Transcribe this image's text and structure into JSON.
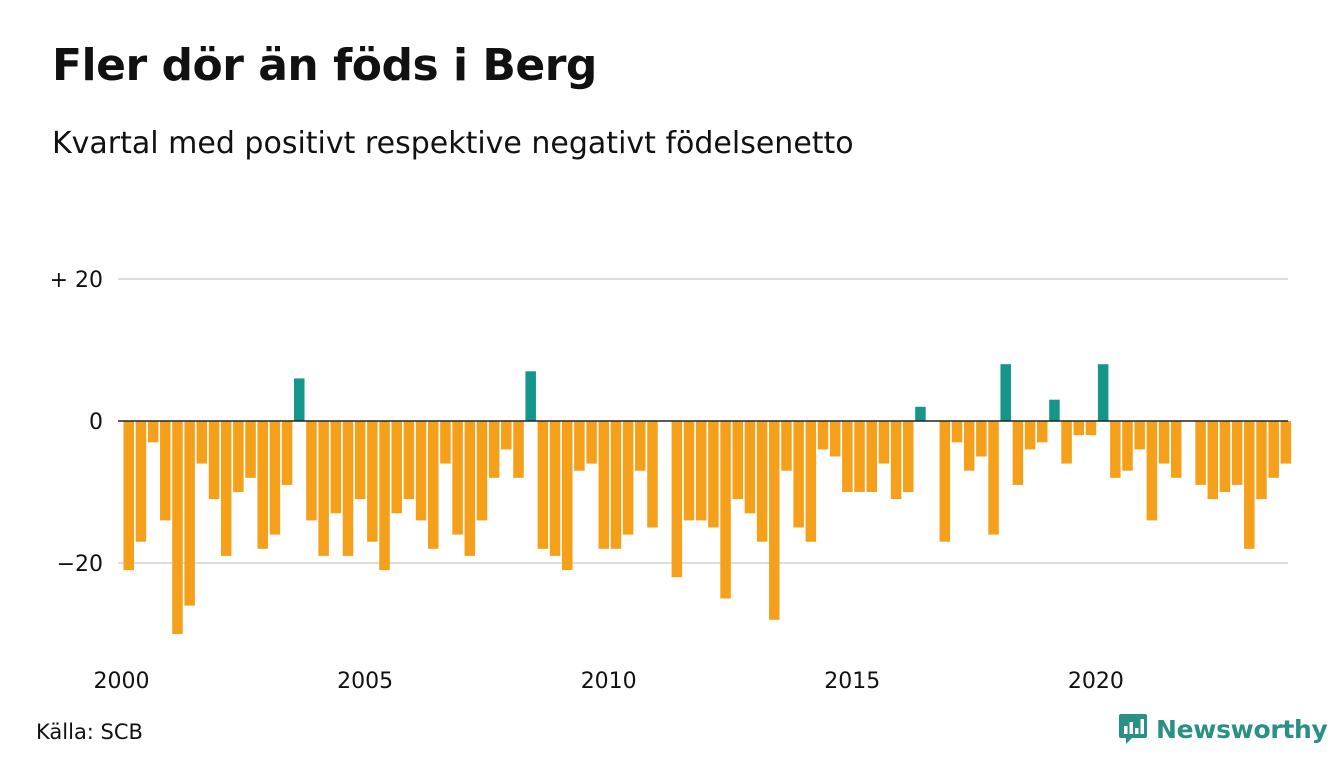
{
  "header": {
    "title": "Fler dör än föds i Berg",
    "subtitle": "Kvartal med positivt respektive negativt födelsenetto"
  },
  "footer": {
    "source": "Källa: SCB",
    "brand": "Newsworthy",
    "brand_icon": "newsworthy-logo-icon"
  },
  "colors": {
    "positive": "#14968a",
    "negative": "#f5a01a",
    "grid": "#dddddd",
    "zero_line": "#222222",
    "brand": "#2a8f84"
  },
  "chart_data": {
    "type": "bar",
    "title": "Fler dör än föds i Berg",
    "subtitle": "Kvartal med positivt respektive negativt födelsenetto",
    "xlabel": "",
    "ylabel": "",
    "x_start": "2000 Q1",
    "ylim": [
      -32,
      22
    ],
    "y_ticks": [
      {
        "value": 20,
        "label": "+ 20"
      },
      {
        "value": 0,
        "label": "0"
      },
      {
        "value": -20,
        "label": "−20"
      }
    ],
    "x_ticks": [
      {
        "year": 2000,
        "label": "2000"
      },
      {
        "year": 2005,
        "label": "2005"
      },
      {
        "year": 2010,
        "label": "2010"
      },
      {
        "year": 2015,
        "label": "2015"
      },
      {
        "year": 2020,
        "label": "2020"
      }
    ],
    "grid": true,
    "legend": "none",
    "values": [
      -21,
      -17,
      -3,
      -14,
      -30,
      -26,
      -6,
      -11,
      -19,
      -10,
      -8,
      -18,
      -16,
      -9,
      6,
      -14,
      -19,
      -13,
      -19,
      -11,
      -17,
      -21,
      -13,
      -11,
      -14,
      -18,
      -6,
      -16,
      -19,
      -14,
      -8,
      -4,
      -8,
      7,
      -18,
      -19,
      -21,
      -7,
      -6,
      -18,
      -18,
      -16,
      -7,
      -15,
      0,
      -22,
      -14,
      -14,
      -15,
      -25,
      -11,
      -13,
      -17,
      -28,
      -7,
      -15,
      -17,
      -4,
      -5,
      -10,
      -10,
      -10,
      -6,
      -11,
      -10,
      2,
      0,
      -17,
      -3,
      -7,
      -5,
      -16,
      8,
      -9,
      -4,
      -3,
      3,
      -6,
      -2,
      -2,
      8,
      -8,
      -7,
      -4,
      -14,
      -6,
      -8,
      0,
      -9,
      -11,
      -10,
      -9,
      -18,
      -11,
      -8,
      -6
    ]
  }
}
